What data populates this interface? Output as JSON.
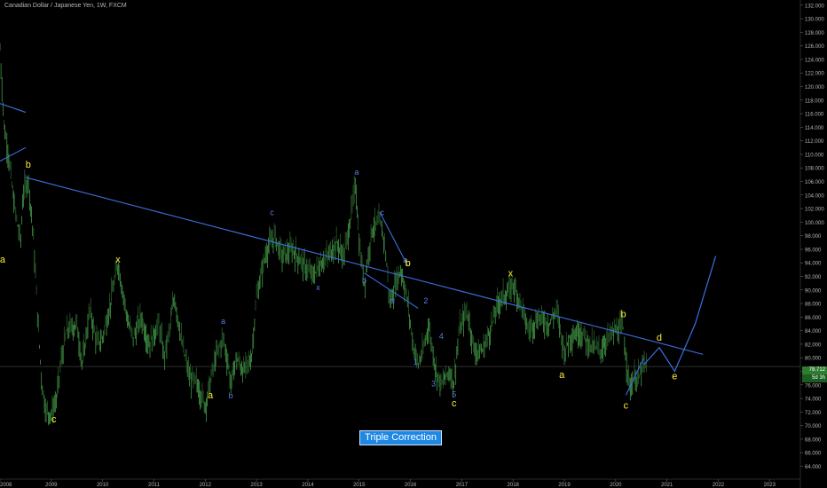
{
  "header": {
    "title": "Canadian Dollar / Japanese Yen, 1W, FXCM"
  },
  "last_price": "78.712",
  "countdown": "5d 3h",
  "colors": {
    "background": "#000000",
    "candles": "#4caf50",
    "lines": "#3d6fe0",
    "labels_major": "#ffeb3b",
    "labels_minor": "#5b7fe6",
    "axis_text": "#b2b5be",
    "note_fill": "#1e88e5"
  },
  "note": "Triple Correction",
  "chart_data": {
    "type": "line",
    "title": "Canadian Dollar / Japanese Yen, 1W, FXCM",
    "xlabel": "",
    "ylabel": "",
    "ylim": [
      62,
      132
    ],
    "xlim": [
      2008.0,
      2023.6
    ],
    "x_ticks": [
      "2008",
      "2009",
      "2010",
      "2011",
      "2012",
      "2013",
      "2014",
      "2015",
      "2016",
      "2017",
      "2018",
      "2019",
      "2020",
      "2021",
      "2022",
      "2023"
    ],
    "y_ticks": [
      "132.000",
      "130.000",
      "128.000",
      "126.000",
      "124.000",
      "122.000",
      "120.000",
      "118.000",
      "116.000",
      "114.000",
      "112.000",
      "110.000",
      "108.000",
      "106.000",
      "104.000",
      "102.000",
      "100.000",
      "98.000",
      "96.000",
      "94.000",
      "92.000",
      "90.000",
      "88.000",
      "86.000",
      "84.000",
      "82.000",
      "80.000",
      "78.000",
      "76.000",
      "74.000",
      "72.000",
      "70.000",
      "68.000",
      "66.000",
      "64.000"
    ],
    "price_path": [
      [
        2008.0,
        125.5
      ],
      [
        2008.08,
        114
      ],
      [
        2008.15,
        111
      ],
      [
        2008.25,
        104
      ],
      [
        2008.4,
        97
      ],
      [
        2008.45,
        104
      ],
      [
        2008.55,
        106.5
      ],
      [
        2008.65,
        98
      ],
      [
        2008.75,
        84
      ],
      [
        2008.82,
        76
      ],
      [
        2008.9,
        72
      ],
      [
        2009.0,
        71.8
      ],
      [
        2009.1,
        74
      ],
      [
        2009.2,
        80
      ],
      [
        2009.3,
        84
      ],
      [
        2009.5,
        85
      ],
      [
        2009.6,
        79
      ],
      [
        2009.75,
        87
      ],
      [
        2009.9,
        82
      ],
      [
        2010.0,
        83
      ],
      [
        2010.15,
        88
      ],
      [
        2010.3,
        94
      ],
      [
        2010.5,
        85
      ],
      [
        2010.6,
        83
      ],
      [
        2010.75,
        86
      ],
      [
        2010.9,
        82
      ],
      [
        2011.1,
        85
      ],
      [
        2011.2,
        80
      ],
      [
        2011.3,
        84
      ],
      [
        2011.4,
        89
      ],
      [
        2011.55,
        82
      ],
      [
        2011.7,
        77
      ],
      [
        2011.85,
        76
      ],
      [
        2012.0,
        73
      ],
      [
        2012.2,
        80
      ],
      [
        2012.35,
        83
      ],
      [
        2012.45,
        79
      ],
      [
        2012.5,
        76
      ],
      [
        2012.6,
        80
      ],
      [
        2012.75,
        78
      ],
      [
        2012.9,
        80
      ],
      [
        2013.0,
        89
      ],
      [
        2013.2,
        96
      ],
      [
        2013.35,
        98
      ],
      [
        2013.5,
        95
      ],
      [
        2013.7,
        96
      ],
      [
        2013.9,
        94
      ],
      [
        2014.1,
        92
      ],
      [
        2014.25,
        94
      ],
      [
        2014.4,
        95
      ],
      [
        2014.55,
        97
      ],
      [
        2014.7,
        95
      ],
      [
        2014.8,
        99
      ],
      [
        2014.9,
        104
      ],
      [
        2014.93,
        106
      ],
      [
        2015.0,
        97
      ],
      [
        2015.1,
        91
      ],
      [
        2015.25,
        99
      ],
      [
        2015.4,
        100
      ],
      [
        2015.5,
        97
      ],
      [
        2015.6,
        88
      ],
      [
        2015.75,
        92
      ],
      [
        2015.82,
        93
      ],
      [
        2015.95,
        88
      ],
      [
        2016.05,
        82
      ],
      [
        2016.15,
        79
      ],
      [
        2016.25,
        81
      ],
      [
        2016.35,
        85
      ],
      [
        2016.5,
        78
      ],
      [
        2016.6,
        76
      ],
      [
        2016.75,
        78
      ],
      [
        2016.85,
        76.3
      ],
      [
        2016.95,
        84
      ],
      [
        2017.1,
        87
      ],
      [
        2017.25,
        81
      ],
      [
        2017.4,
        81
      ],
      [
        2017.55,
        84
      ],
      [
        2017.7,
        88
      ],
      [
        2017.8,
        89
      ],
      [
        2017.95,
        90
      ],
      [
        2018.0,
        91
      ],
      [
        2018.15,
        88
      ],
      [
        2018.3,
        84
      ],
      [
        2018.5,
        86
      ],
      [
        2018.7,
        85
      ],
      [
        2018.85,
        87
      ],
      [
        2019.0,
        81
      ],
      [
        2019.1,
        83
      ],
      [
        2019.3,
        84
      ],
      [
        2019.5,
        82
      ],
      [
        2019.7,
        81
      ],
      [
        2019.85,
        83
      ],
      [
        2020.0,
        84
      ],
      [
        2020.15,
        84.5
      ],
      [
        2020.2,
        80
      ],
      [
        2020.28,
        75.5
      ],
      [
        2020.35,
        77
      ],
      [
        2020.45,
        77
      ],
      [
        2020.55,
        79
      ],
      [
        2020.6,
        78.7
      ]
    ],
    "trendlines": [
      {
        "from": [
          2008.0,
          117.5
        ],
        "to": [
          2008.5,
          116.2
        ]
      },
      {
        "from": [
          2008.0,
          109
        ],
        "to": [
          2008.5,
          111
        ]
      },
      {
        "from": [
          2008.5,
          106.6
        ],
        "to": [
          2021.7,
          80.5
        ]
      },
      {
        "from": [
          2015.4,
          101.5
        ],
        "to": [
          2015.95,
          93.5
        ]
      },
      {
        "from": [
          2015.1,
          92.5
        ],
        "to": [
          2016.15,
          87.3
        ]
      },
      {
        "from": [
          2020.2,
          74.5
        ],
        "to": [
          2020.55,
          80
        ]
      }
    ],
    "projection": [
      [
        2020.55,
        79
      ],
      [
        2020.85,
        81.5
      ],
      [
        2021.15,
        78
      ],
      [
        2021.55,
        85
      ],
      [
        2021.95,
        95
      ]
    ],
    "wave_labels": [
      {
        "text": "b",
        "x": 2008.55,
        "y": 108,
        "style": "major"
      },
      {
        "text": "a",
        "x": 2008.05,
        "y": 94,
        "style": "major"
      },
      {
        "text": "c",
        "x": 2009.05,
        "y": 70.5,
        "style": "major"
      },
      {
        "text": "x",
        "x": 2010.3,
        "y": 94,
        "style": "major"
      },
      {
        "text": "a",
        "x": 2012.1,
        "y": 74,
        "style": "major"
      },
      {
        "text": "a",
        "x": 2012.35,
        "y": 85,
        "style": "minor"
      },
      {
        "text": "b",
        "x": 2012.5,
        "y": 74,
        "style": "minor"
      },
      {
        "text": "c",
        "x": 2013.3,
        "y": 101,
        "style": "minor"
      },
      {
        "text": "x",
        "x": 2014.2,
        "y": 90,
        "style": "minor"
      },
      {
        "text": "a",
        "x": 2014.95,
        "y": 107,
        "style": "minor"
      },
      {
        "text": "c",
        "x": 2015.45,
        "y": 101,
        "style": "minor"
      },
      {
        "text": "b",
        "x": 2015.1,
        "y": 91,
        "style": "minor"
      },
      {
        "text": "d",
        "x": 2015.65,
        "y": 88,
        "style": "minor"
      },
      {
        "text": "a",
        "x": 2015.9,
        "y": 94,
        "style": "minor"
      },
      {
        "text": "b",
        "x": 2015.95,
        "y": 93.5,
        "style": "major"
      },
      {
        "text": "2",
        "x": 2016.3,
        "y": 88,
        "style": "minor"
      },
      {
        "text": "1",
        "x": 2016.1,
        "y": 79,
        "style": "minor"
      },
      {
        "text": "4",
        "x": 2016.6,
        "y": 82.8,
        "style": "minor"
      },
      {
        "text": "3",
        "x": 2016.45,
        "y": 75.8,
        "style": "minor"
      },
      {
        "text": "5",
        "x": 2016.85,
        "y": 74.2,
        "style": "minor"
      },
      {
        "text": "c",
        "x": 2016.85,
        "y": 72.8,
        "style": "major"
      },
      {
        "text": "x",
        "x": 2017.95,
        "y": 92,
        "style": "major"
      },
      {
        "text": "a",
        "x": 2018.95,
        "y": 77,
        "style": "major"
      },
      {
        "text": "b",
        "x": 2020.15,
        "y": 86,
        "style": "major"
      },
      {
        "text": "c",
        "x": 2020.2,
        "y": 72.5,
        "style": "major"
      },
      {
        "text": "d",
        "x": 2020.85,
        "y": 82.5,
        "style": "major"
      },
      {
        "text": "e",
        "x": 2021.15,
        "y": 76.8,
        "style": "major"
      }
    ],
    "grid": false,
    "legend": "none"
  }
}
